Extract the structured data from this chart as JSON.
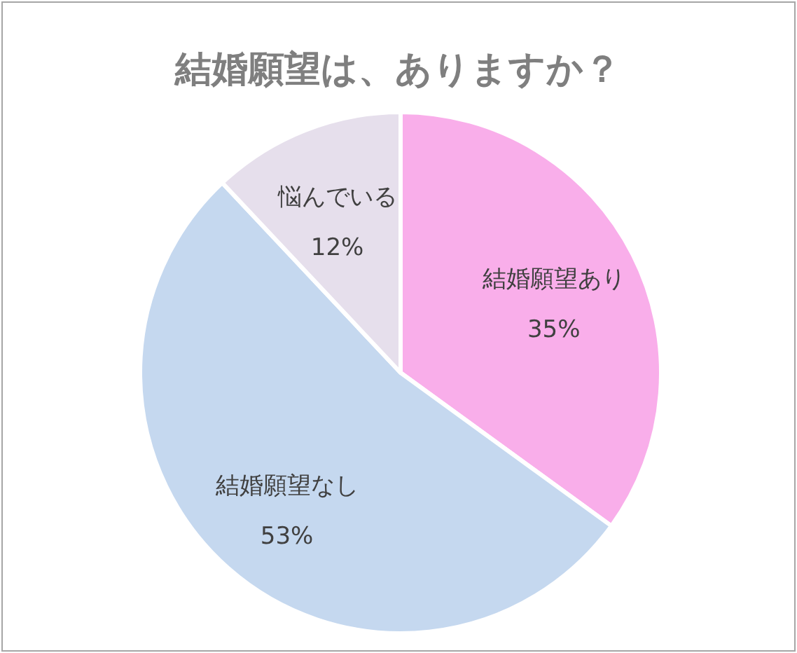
{
  "chart_data": {
    "type": "pie",
    "title": "結婚願望は、ありますか？",
    "categories": [
      "結婚願望あり",
      "結婚願望なし",
      "悩んでいる"
    ],
    "values": [
      35,
      53,
      12
    ],
    "value_labels": [
      "35%",
      "53%",
      "12%"
    ],
    "colors": [
      "#f9aeea",
      "#c5d8ef",
      "#e6dfec"
    ],
    "legend": false
  }
}
